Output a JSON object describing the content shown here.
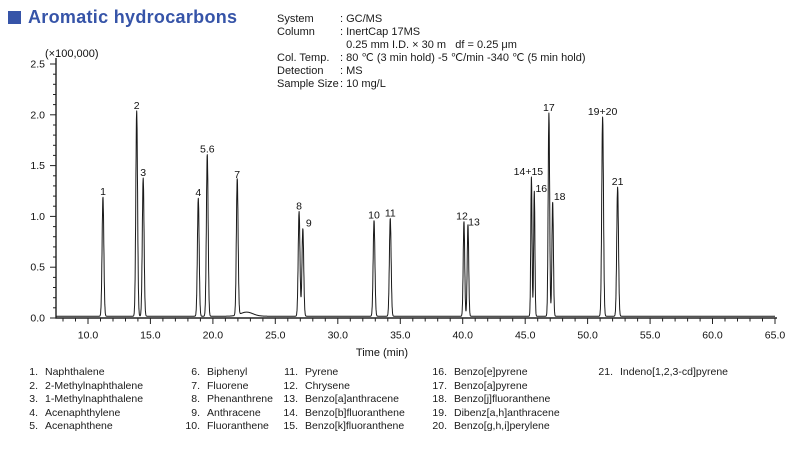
{
  "title": {
    "text": "Aromatic hydrocarbons",
    "accent_color": "#3654a8"
  },
  "conditions": {
    "rows": [
      {
        "label": "System",
        "value": ": GC/MS"
      },
      {
        "label": "Column",
        "value": ": InertCap 17MS"
      },
      {
        "label": "",
        "value": "  0.25 mm I.D. × 30 m   df = 0.25 μm"
      },
      {
        "label": "Col. Temp.",
        "value": ": 80 ℃ (3 min hold) -5 ℃/min -340 ℃ (5 min hold)"
      },
      {
        "label": "Detection",
        "value": ": MS"
      },
      {
        "label": "Sample Size",
        "value": ": 10 mg/L"
      }
    ]
  },
  "chart_data": {
    "type": "line",
    "title": "Aromatic hydrocarbons",
    "y_scale_note": "(×100,000)",
    "xlabel": "Time (min)",
    "ylabel": "",
    "xlim": [
      7.44,
      65.0
    ],
    "ylim": [
      0.0,
      2.5
    ],
    "x_tick_labels": [
      "10.0",
      "15.0",
      "20.0",
      "25.0",
      "30.0",
      "35.0",
      "40.0",
      "45.0",
      "50.0",
      "55.0",
      "60.0",
      "65.0"
    ],
    "y_tick_labels": [
      "0.0",
      "0.5",
      "1.0",
      "1.5",
      "2.0",
      "2.5"
    ],
    "x_minor_step": 1.0,
    "y_minor_step": 0.1,
    "baseline": 0.018,
    "line_color": "#1a1a1a",
    "peaks": [
      {
        "label": "1",
        "t": 11.2,
        "h": 1.17
      },
      {
        "label": "2",
        "t": 13.9,
        "h": 2.02
      },
      {
        "label": "3",
        "t": 14.42,
        "h": 1.36
      },
      {
        "label": "4",
        "t": 18.83,
        "h": 1.16
      },
      {
        "label": "5.6",
        "t": 19.55,
        "h": 1.59
      },
      {
        "label": "7",
        "t": 21.95,
        "h": 1.34
      },
      {
        "label": "",
        "t": 22.7,
        "h": 0.04,
        "sigma": 0.5
      },
      {
        "label": "8",
        "t": 26.9,
        "h": 1.03
      },
      {
        "label": "9",
        "t": 27.2,
        "h": 0.86,
        "label_dx": 6
      },
      {
        "label": "10",
        "t": 32.9,
        "h": 0.94
      },
      {
        "label": "11",
        "t": 34.2,
        "h": 0.96
      },
      {
        "label": "12",
        "t": 40.1,
        "h": 0.93,
        "sigma": 0.06,
        "label_dx": -2
      },
      {
        "label": "13",
        "t": 40.42,
        "h": 0.9,
        "sigma": 0.06,
        "label_dx": 6,
        "label_dy": 3
      },
      {
        "label": "14+15",
        "t": 45.5,
        "h": 1.37,
        "sigma": 0.05,
        "label_dx": -3
      },
      {
        "label": "16",
        "t": 45.73,
        "h": 1.23,
        "sigma": 0.05,
        "label_dx": 7,
        "label_dy": 3
      },
      {
        "label": "17",
        "t": 46.9,
        "h": 2.0,
        "sigma": 0.06
      },
      {
        "label": "18",
        "t": 47.2,
        "h": 1.12,
        "sigma": 0.06,
        "label_dx": 7
      },
      {
        "label": "19+20",
        "t": 51.2,
        "h": 1.96
      },
      {
        "label": "21",
        "t": 52.4,
        "h": 1.27
      }
    ]
  },
  "legend": {
    "columns": [
      [
        {
          "n": "1.",
          "name": "Naphthalene"
        },
        {
          "n": "2.",
          "name": "2-Methylnaphthalene"
        },
        {
          "n": "3.",
          "name": "1-Methylnaphthalene"
        },
        {
          "n": "4.",
          "name": "Acenaphthylene"
        },
        {
          "n": "5.",
          "name": "Acenaphthene"
        }
      ],
      [
        {
          "n": "6.",
          "name": "Biphenyl"
        },
        {
          "n": "7.",
          "name": "Fluorene"
        },
        {
          "n": "8.",
          "name": "Phenanthrene"
        },
        {
          "n": "9.",
          "name": "Anthracene"
        },
        {
          "n": "10.",
          "name": "Fluoranthene"
        }
      ],
      [
        {
          "n": "11.",
          "name": "Pyrene"
        },
        {
          "n": "12.",
          "name": "Chrysene"
        },
        {
          "n": "13.",
          "name": "Benzo[a]anthracene"
        },
        {
          "n": "14.",
          "name": "Benzo[b]fluoranthene"
        },
        {
          "n": "15.",
          "name": "Benzo[k]fluoranthene"
        }
      ],
      [
        {
          "n": "16.",
          "name": "Benzo[e]pyrene"
        },
        {
          "n": "17.",
          "name": "Benzo[a]pyrene"
        },
        {
          "n": "18.",
          "name": "Benzo[j]fluoranthene"
        },
        {
          "n": "19.",
          "name": "Dibenz[a,h]anthracene"
        },
        {
          "n": "20.",
          "name": "Benzo[g,h,i]perylene"
        }
      ],
      [
        {
          "n": "21.",
          "name": "Indeno[1,2,3-cd]pyrene"
        }
      ]
    ]
  }
}
